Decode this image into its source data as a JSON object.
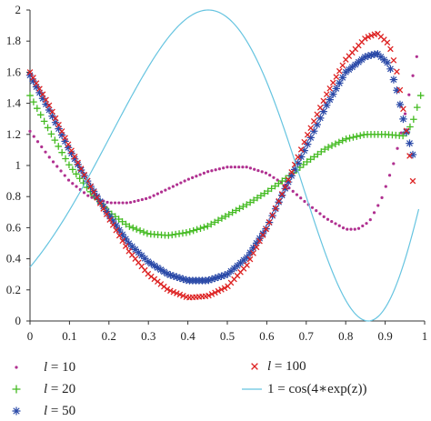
{
  "chart_data": {
    "type": "scatter",
    "title": "",
    "xlabel": "",
    "ylabel": "",
    "xlim": [
      0,
      1
    ],
    "ylim": [
      0,
      2
    ],
    "x_ticks": [
      0,
      0.1,
      0.2,
      0.3,
      0.4,
      0.5,
      0.6,
      0.7,
      0.8,
      0.9,
      1
    ],
    "x_tick_labels": [
      "0",
      "0.1",
      "0.2",
      "0.3",
      "0.4",
      "0.5",
      "0.6",
      "0.7",
      "0.8",
      "0.9",
      "1"
    ],
    "y_ticks": [
      0,
      0.2,
      0.4,
      0.6,
      0.8,
      1,
      1.2,
      1.4,
      1.6,
      1.8,
      2
    ],
    "y_tick_labels": [
      "0",
      "0.2",
      "0.4",
      "0.6",
      "0.8",
      "1",
      "1.2",
      "1.4",
      "1.6",
      "1.8",
      "2"
    ],
    "grid": false,
    "legend_position": "bottom",
    "series": [
      {
        "name_prefix": "l",
        "name_suffix": " = 10",
        "marker": "dot",
        "color": "#b03090",
        "points": [
          [
            0,
            1.22
          ],
          [
            0.05,
            1.05
          ],
          [
            0.1,
            0.9
          ],
          [
            0.15,
            0.8
          ],
          [
            0.2,
            0.76
          ],
          [
            0.25,
            0.76
          ],
          [
            0.3,
            0.79
          ],
          [
            0.35,
            0.85
          ],
          [
            0.4,
            0.91
          ],
          [
            0.45,
            0.96
          ],
          [
            0.5,
            0.99
          ],
          [
            0.55,
            0.99
          ],
          [
            0.6,
            0.95
          ],
          [
            0.65,
            0.87
          ],
          [
            0.7,
            0.76
          ],
          [
            0.75,
            0.66
          ],
          [
            0.8,
            0.59
          ],
          [
            0.83,
            0.59
          ],
          [
            0.86,
            0.64
          ],
          [
            0.89,
            0.78
          ],
          [
            0.92,
            1.0
          ],
          [
            0.94,
            1.2
          ],
          [
            0.96,
            1.45
          ],
          [
            0.98,
            1.7
          ]
        ]
      },
      {
        "name_prefix": "l",
        "name_suffix": " = 20",
        "marker": "plus",
        "color": "#44bb22",
        "points": [
          [
            0,
            1.45
          ],
          [
            0.05,
            1.22
          ],
          [
            0.1,
            1.0
          ],
          [
            0.15,
            0.84
          ],
          [
            0.2,
            0.7
          ],
          [
            0.25,
            0.61
          ],
          [
            0.3,
            0.56
          ],
          [
            0.35,
            0.55
          ],
          [
            0.4,
            0.57
          ],
          [
            0.45,
            0.61
          ],
          [
            0.5,
            0.68
          ],
          [
            0.55,
            0.75
          ],
          [
            0.6,
            0.83
          ],
          [
            0.65,
            0.92
          ],
          [
            0.7,
            1.02
          ],
          [
            0.75,
            1.11
          ],
          [
            0.8,
            1.17
          ],
          [
            0.85,
            1.2
          ],
          [
            0.9,
            1.2
          ],
          [
            0.95,
            1.19
          ],
          [
            0.97,
            1.28
          ],
          [
            0.99,
            1.45
          ]
        ]
      },
      {
        "name_prefix": "l",
        "name_suffix": " = 50",
        "marker": "asterisk",
        "color": "#2b4aa8",
        "points": [
          [
            0,
            1.58
          ],
          [
            0.05,
            1.35
          ],
          [
            0.1,
            1.1
          ],
          [
            0.15,
            0.88
          ],
          [
            0.2,
            0.68
          ],
          [
            0.25,
            0.5
          ],
          [
            0.3,
            0.38
          ],
          [
            0.35,
            0.3
          ],
          [
            0.4,
            0.26
          ],
          [
            0.45,
            0.26
          ],
          [
            0.5,
            0.3
          ],
          [
            0.55,
            0.41
          ],
          [
            0.6,
            0.6
          ],
          [
            0.65,
            0.87
          ],
          [
            0.7,
            1.12
          ],
          [
            0.75,
            1.38
          ],
          [
            0.8,
            1.6
          ],
          [
            0.85,
            1.7
          ],
          [
            0.88,
            1.72
          ],
          [
            0.91,
            1.65
          ],
          [
            0.93,
            1.48
          ],
          [
            0.95,
            1.25
          ],
          [
            0.97,
            1.07
          ]
        ]
      },
      {
        "name_prefix": "l",
        "name_suffix": " = 100",
        "marker": "cross",
        "color": "#dd2222",
        "points": [
          [
            0,
            1.6
          ],
          [
            0.05,
            1.38
          ],
          [
            0.1,
            1.12
          ],
          [
            0.15,
            0.88
          ],
          [
            0.2,
            0.66
          ],
          [
            0.25,
            0.45
          ],
          [
            0.3,
            0.3
          ],
          [
            0.35,
            0.2
          ],
          [
            0.4,
            0.15
          ],
          [
            0.45,
            0.16
          ],
          [
            0.5,
            0.22
          ],
          [
            0.55,
            0.36
          ],
          [
            0.6,
            0.6
          ],
          [
            0.65,
            0.88
          ],
          [
            0.7,
            1.18
          ],
          [
            0.75,
            1.45
          ],
          [
            0.8,
            1.68
          ],
          [
            0.85,
            1.82
          ],
          [
            0.88,
            1.85
          ],
          [
            0.91,
            1.78
          ],
          [
            0.93,
            1.6
          ],
          [
            0.95,
            1.3
          ],
          [
            0.97,
            0.9
          ]
        ]
      },
      {
        "name": "1 = cos(4∗exp(z))",
        "marker": "line",
        "color": "#66c4e0",
        "formula": "cos(4*exp(z)) + 1",
        "x_range": [
          0,
          0.985
        ]
      }
    ]
  }
}
